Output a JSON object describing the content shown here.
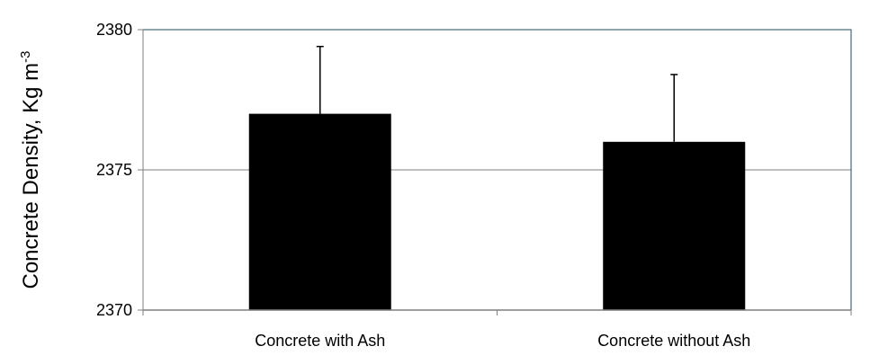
{
  "chart_data": {
    "type": "bar",
    "title": "",
    "xlabel": "",
    "ylabel": "Concrete Density, Kg m",
    "ylabel_superscript": "-3",
    "categories": [
      "Concrete with Ash",
      "Concrete without Ash"
    ],
    "values": [
      2377.0,
      2376.0
    ],
    "error_bars_upper": [
      2.4,
      2.4
    ],
    "ylim": [
      2370,
      2380
    ],
    "yticks": [
      2370,
      2375,
      2380
    ],
    "ytick_labels": [
      "2370",
      "2375",
      "2380"
    ],
    "grid": true,
    "legend": "none",
    "colors": {
      "bar": "#000000",
      "plot_border": "#1f4e5f",
      "grid": "#7f7f7f",
      "axis": "#7f7f7f"
    }
  }
}
